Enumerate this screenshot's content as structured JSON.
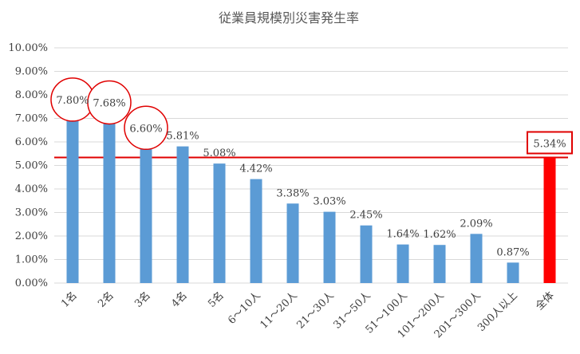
{
  "chart_data": {
    "type": "bar",
    "title": "従業員規模別災害発生率",
    "xlabel": "",
    "ylabel": "",
    "ylim": [
      0,
      0.1
    ],
    "y_tick_labels": [
      "0.00%",
      "1.00%",
      "2.00%",
      "3.00%",
      "4.00%",
      "5.00%",
      "6.00%",
      "7.00%",
      "8.00%",
      "9.00%",
      "10.00%"
    ],
    "categories": [
      "1名",
      "2名",
      "3名",
      "4名",
      "5名",
      "6～10人",
      "11～20人",
      "21～30人",
      "31～50人",
      "51～100人",
      "101～200人",
      "201～300人",
      "300人以上",
      "全体"
    ],
    "values": [
      0.078,
      0.0768,
      0.066,
      0.0581,
      0.0508,
      0.0442,
      0.0338,
      0.0303,
      0.0245,
      0.0164,
      0.0162,
      0.0209,
      0.0087,
      0.0534
    ],
    "value_labels": [
      "7.80%",
      "7.68%",
      "6.60%",
      "5.81%",
      "5.08%",
      "4.42%",
      "3.38%",
      "3.03%",
      "2.45%",
      "1.64%",
      "1.62%",
      "2.09%",
      "0.87%",
      "5.34%"
    ],
    "grid": true,
    "legend": "none",
    "circled_categories": [
      "1名",
      "2名",
      "3名"
    ],
    "highlighted_category": "全体",
    "reference_line_value": 0.0534,
    "colors": {
      "bar": "#5b9bd5",
      "highlight_bar": "#ff0000",
      "reference_line": "#e00000",
      "annotation": "#e00000"
    }
  }
}
